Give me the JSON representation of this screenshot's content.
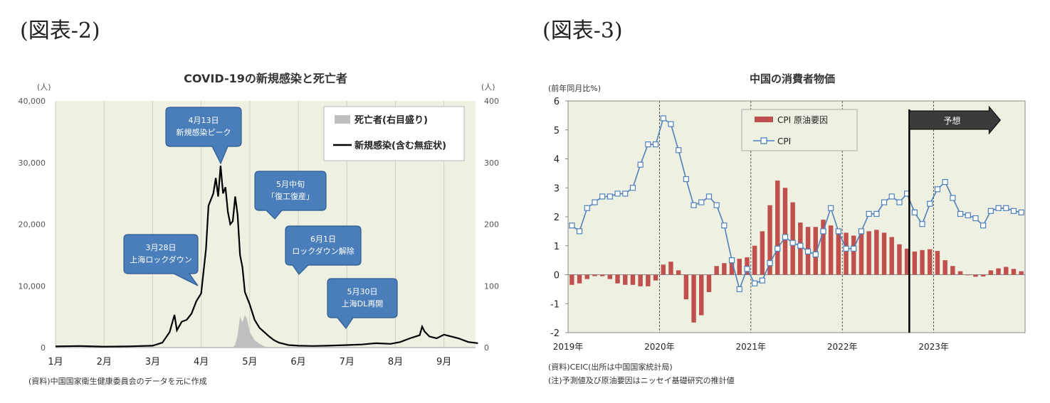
{
  "figures": {
    "left_label": "(図表-2)",
    "right_label": "(図表-3)"
  },
  "chart_data": [
    {
      "type": "line",
      "title": "COVID-19の新規感染と死亡者",
      "ylabel": "(人)",
      "y2label": "(人)",
      "ylim": [
        0,
        40000
      ],
      "y2lim": [
        0,
        400
      ],
      "yticks": [
        "0",
        "10,000",
        "20,000",
        "30,000",
        "40,000"
      ],
      "y2ticks": [
        "0",
        "100",
        "200",
        "300",
        "400"
      ],
      "xticks": [
        "1月",
        "2月",
        "3月",
        "4月",
        "5月",
        "6月",
        "7月",
        "8月",
        "9月"
      ],
      "legend_position": "top-right",
      "series": [
        {
          "name": "新規感染(含む無症状)",
          "axis": "left",
          "style": "line",
          "color": "#000000",
          "points": [
            [
              1.0,
              200
            ],
            [
              1.5,
              250
            ],
            [
              2.0,
              150
            ],
            [
              2.5,
              200
            ],
            [
              3.0,
              300
            ],
            [
              3.2,
              800
            ],
            [
              3.35,
              2500
            ],
            [
              3.45,
              5300
            ],
            [
              3.5,
              2800
            ],
            [
              3.6,
              4200
            ],
            [
              3.7,
              4500
            ],
            [
              3.8,
              5500
            ],
            [
              3.9,
              7500
            ],
            [
              4.0,
              8800
            ],
            [
              4.1,
              16000
            ],
            [
              4.15,
              23000
            ],
            [
              4.25,
              25000
            ],
            [
              4.3,
              27500
            ],
            [
              4.35,
              24500
            ],
            [
              4.4,
              29500
            ],
            [
              4.45,
              25000
            ],
            [
              4.5,
              26000
            ],
            [
              4.55,
              22000
            ],
            [
              4.6,
              20000
            ],
            [
              4.65,
              20500
            ],
            [
              4.7,
              24500
            ],
            [
              4.75,
              21500
            ],
            [
              4.8,
              15000
            ],
            [
              4.85,
              13000
            ],
            [
              4.9,
              9000
            ],
            [
              5.0,
              7000
            ],
            [
              5.1,
              4500
            ],
            [
              5.2,
              3200
            ],
            [
              5.3,
              2500
            ],
            [
              5.4,
              1800
            ],
            [
              5.5,
              1200
            ],
            [
              5.6,
              800
            ],
            [
              5.8,
              400
            ],
            [
              6.0,
              300
            ],
            [
              6.3,
              250
            ],
            [
              6.6,
              300
            ],
            [
              7.0,
              400
            ],
            [
              7.3,
              500
            ],
            [
              7.6,
              700
            ],
            [
              7.9,
              600
            ],
            [
              8.1,
              900
            ],
            [
              8.3,
              1500
            ],
            [
              8.5,
              2000
            ],
            [
              8.55,
              3400
            ],
            [
              8.6,
              2600
            ],
            [
              8.7,
              1800
            ],
            [
              8.85,
              1500
            ],
            [
              9.0,
              2100
            ],
            [
              9.15,
              1800
            ],
            [
              9.3,
              1500
            ],
            [
              9.5,
              900
            ],
            [
              9.7,
              700
            ]
          ]
        },
        {
          "name": "死亡者(右目盛り)",
          "axis": "right",
          "style": "area",
          "color": "#bfbfbf",
          "points": [
            [
              4.65,
              0
            ],
            [
              4.7,
              5
            ],
            [
              4.75,
              20
            ],
            [
              4.8,
              50
            ],
            [
              4.85,
              40
            ],
            [
              4.9,
              53
            ],
            [
              4.95,
              45
            ],
            [
              5.0,
              25
            ],
            [
              5.1,
              12
            ],
            [
              5.2,
              6
            ],
            [
              5.3,
              2
            ],
            [
              5.4,
              0
            ]
          ]
        }
      ],
      "annotations": [
        {
          "lines": [
            "4月13日",
            "新規感染ピーク"
          ]
        },
        {
          "lines": [
            "5月中旬",
            "「復工復産」"
          ]
        },
        {
          "lines": [
            "3月28日",
            "上海ロックダウン"
          ]
        },
        {
          "lines": [
            "6月1日",
            "ロックダウン解除"
          ]
        },
        {
          "lines": [
            "5月30日",
            "上海DL再開"
          ]
        }
      ],
      "source_note": "(資料)中国国家衛生健康委員会のデータを元に作成"
    },
    {
      "type": "bar+line",
      "title": "中国の消費者物価",
      "ylabel": "(前年同月比%)",
      "ylim": [
        -2,
        6
      ],
      "yticks": [
        "-2",
        "-1",
        "0",
        "1",
        "2",
        "3",
        "4",
        "5",
        "6"
      ],
      "xticks": [
        "2019年",
        "2020年",
        "2021年",
        "2022年",
        "2023年"
      ],
      "forecast_label": "予想",
      "forecast_start_index": 45,
      "series": [
        {
          "name": "CPI 原油要因",
          "style": "bar",
          "color": "#c0504d",
          "values": [
            -0.35,
            -0.3,
            -0.15,
            -0.05,
            -0.05,
            -0.15,
            -0.3,
            -0.35,
            -0.35,
            -0.4,
            -0.4,
            -0.2,
            0.35,
            0.45,
            0.15,
            -0.85,
            -1.65,
            -1.4,
            -0.6,
            0.3,
            0.4,
            0.5,
            0.55,
            0.6,
            1.0,
            1.5,
            2.4,
            3.25,
            3.0,
            2.5,
            1.8,
            1.65,
            1.65,
            1.9,
            1.7,
            1.5,
            1.45,
            1.35,
            1.45,
            1.5,
            1.55,
            1.45,
            1.3,
            1.05,
            0.9,
            0.8,
            0.85,
            0.88,
            0.82,
            0.5,
            0.3,
            0.12,
            -0.02,
            -0.07,
            -0.06,
            0.15,
            0.22,
            0.27,
            0.2,
            0.12
          ]
        },
        {
          "name": "CPI",
          "style": "line",
          "color": "#4f81bd",
          "values": [
            1.7,
            1.5,
            2.3,
            2.5,
            2.7,
            2.7,
            2.8,
            2.8,
            3.0,
            3.8,
            4.5,
            4.5,
            5.4,
            5.2,
            4.3,
            3.3,
            2.4,
            2.5,
            2.7,
            2.4,
            1.7,
            0.5,
            -0.5,
            0.2,
            -0.3,
            -0.2,
            0.4,
            0.9,
            1.3,
            1.1,
            1.0,
            0.8,
            0.7,
            1.5,
            2.3,
            1.5,
            0.9,
            0.9,
            1.5,
            2.1,
            2.1,
            2.5,
            2.7,
            2.5,
            2.8,
            2.15,
            1.75,
            2.45,
            2.95,
            3.2,
            2.65,
            2.1,
            2.05,
            1.95,
            1.7,
            2.2,
            2.3,
            2.3,
            2.2,
            2.15
          ]
        }
      ],
      "source_note": "(資料)CEIC(出所は中国国家統計局)",
      "note2": "(注)予測値及び原油要因はニッセイ基礎研究の推計値"
    }
  ]
}
